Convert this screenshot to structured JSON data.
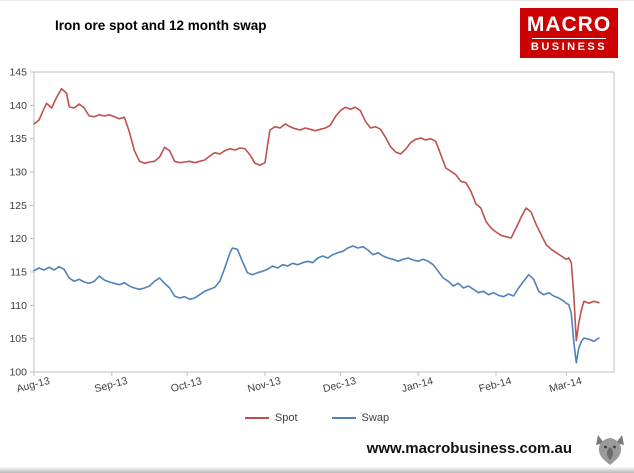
{
  "header": {
    "title": "Iron ore spot and 12 month swap",
    "logo": {
      "line1": "MACRO",
      "line2": "BUSINESS",
      "bg_color": "#cc0202",
      "text_color": "#ffffff"
    }
  },
  "footer": {
    "url": "www.macrobusiness.com.au",
    "logo_icon": "wolf-logo"
  },
  "chart_data": {
    "type": "line",
    "title": "Iron ore spot and 12 month swap",
    "xlabel": "",
    "ylabel": "",
    "ylim": [
      100,
      145
    ],
    "y_step": 5,
    "x_max_day": 231,
    "grid": false,
    "legend_position": "bottom",
    "axis_color": "#bfbfbf",
    "tick_label_color": "#404040",
    "x_ticks": [
      {
        "label": "Aug-13",
        "day": 0
      },
      {
        "label": "Sep-13",
        "day": 31
      },
      {
        "label": "Oct-13",
        "day": 61
      },
      {
        "label": "Nov-13",
        "day": 92
      },
      {
        "label": "Dec-13",
        "day": 122
      },
      {
        "label": "Jan-14",
        "day": 153
      },
      {
        "label": "Feb-14",
        "day": 184
      },
      {
        "label": "Mar-14",
        "day": 212
      }
    ],
    "series": [
      {
        "name": "Spot",
        "color": "#C0504D",
        "points": [
          [
            0,
            137.2
          ],
          [
            2,
            137.8
          ],
          [
            4,
            139.5
          ],
          [
            5,
            140.3
          ],
          [
            7,
            139.6
          ],
          [
            9,
            141.2
          ],
          [
            11,
            142.5
          ],
          [
            13,
            141.8
          ],
          [
            14,
            139.8
          ],
          [
            16,
            139.6
          ],
          [
            18,
            140.2
          ],
          [
            20,
            139.6
          ],
          [
            22,
            138.4
          ],
          [
            24,
            138.3
          ],
          [
            26,
            138.6
          ],
          [
            28,
            138.4
          ],
          [
            30,
            138.6
          ],
          [
            32,
            138.3
          ],
          [
            34,
            138.0
          ],
          [
            36,
            138.2
          ],
          [
            38,
            136.0
          ],
          [
            40,
            133.2
          ],
          [
            42,
            131.6
          ],
          [
            44,
            131.3
          ],
          [
            46,
            131.5
          ],
          [
            48,
            131.6
          ],
          [
            50,
            132.2
          ],
          [
            52,
            133.7
          ],
          [
            54,
            133.2
          ],
          [
            56,
            131.6
          ],
          [
            58,
            131.4
          ],
          [
            60,
            131.5
          ],
          [
            62,
            131.6
          ],
          [
            64,
            131.4
          ],
          [
            66,
            131.6
          ],
          [
            68,
            131.8
          ],
          [
            70,
            132.4
          ],
          [
            72,
            132.9
          ],
          [
            74,
            132.7
          ],
          [
            76,
            133.2
          ],
          [
            78,
            133.5
          ],
          [
            80,
            133.3
          ],
          [
            82,
            133.6
          ],
          [
            84,
            133.5
          ],
          [
            86,
            132.6
          ],
          [
            88,
            131.3
          ],
          [
            90,
            131.0
          ],
          [
            92,
            131.4
          ],
          [
            93,
            134.0
          ],
          [
            94,
            136.3
          ],
          [
            96,
            136.8
          ],
          [
            98,
            136.6
          ],
          [
            100,
            137.2
          ],
          [
            102,
            136.8
          ],
          [
            104,
            136.5
          ],
          [
            106,
            136.3
          ],
          [
            108,
            136.6
          ],
          [
            110,
            136.4
          ],
          [
            112,
            136.2
          ],
          [
            114,
            136.4
          ],
          [
            116,
            136.6
          ],
          [
            118,
            137.0
          ],
          [
            120,
            138.3
          ],
          [
            122,
            139.2
          ],
          [
            124,
            139.7
          ],
          [
            126,
            139.4
          ],
          [
            128,
            139.7
          ],
          [
            130,
            139.2
          ],
          [
            132,
            137.6
          ],
          [
            134,
            136.6
          ],
          [
            136,
            136.8
          ],
          [
            138,
            136.4
          ],
          [
            140,
            135.2
          ],
          [
            142,
            133.8
          ],
          [
            144,
            133.0
          ],
          [
            146,
            132.7
          ],
          [
            148,
            133.4
          ],
          [
            150,
            134.4
          ],
          [
            152,
            134.9
          ],
          [
            154,
            135.1
          ],
          [
            156,
            134.8
          ],
          [
            158,
            135.0
          ],
          [
            160,
            134.6
          ],
          [
            162,
            132.6
          ],
          [
            164,
            130.6
          ],
          [
            166,
            130.1
          ],
          [
            168,
            129.6
          ],
          [
            170,
            128.6
          ],
          [
            172,
            128.4
          ],
          [
            174,
            127.1
          ],
          [
            176,
            125.2
          ],
          [
            178,
            124.6
          ],
          [
            180,
            122.6
          ],
          [
            182,
            121.6
          ],
          [
            184,
            121.0
          ],
          [
            186,
            120.5
          ],
          [
            188,
            120.3
          ],
          [
            190,
            120.1
          ],
          [
            192,
            121.6
          ],
          [
            194,
            123.2
          ],
          [
            196,
            124.6
          ],
          [
            198,
            124.0
          ],
          [
            200,
            122.1
          ],
          [
            202,
            120.6
          ],
          [
            204,
            119.1
          ],
          [
            206,
            118.4
          ],
          [
            208,
            117.9
          ],
          [
            210,
            117.4
          ],
          [
            212,
            116.9
          ],
          [
            213,
            117.1
          ],
          [
            214,
            116.4
          ],
          [
            215,
            111.5
          ],
          [
            216,
            104.7
          ],
          [
            217,
            107.4
          ],
          [
            218,
            109.3
          ],
          [
            219,
            110.6
          ],
          [
            221,
            110.3
          ],
          [
            223,
            110.6
          ],
          [
            225,
            110.4
          ]
        ]
      },
      {
        "name": "Swap",
        "color": "#4F81BD",
        "points": [
          [
            0,
            115.2
          ],
          [
            2,
            115.6
          ],
          [
            4,
            115.3
          ],
          [
            6,
            115.7
          ],
          [
            8,
            115.3
          ],
          [
            10,
            115.8
          ],
          [
            12,
            115.4
          ],
          [
            14,
            114.1
          ],
          [
            16,
            113.6
          ],
          [
            18,
            113.9
          ],
          [
            20,
            113.5
          ],
          [
            22,
            113.3
          ],
          [
            24,
            113.6
          ],
          [
            26,
            114.4
          ],
          [
            28,
            113.8
          ],
          [
            30,
            113.5
          ],
          [
            32,
            113.3
          ],
          [
            34,
            113.1
          ],
          [
            36,
            113.4
          ],
          [
            38,
            112.9
          ],
          [
            40,
            112.6
          ],
          [
            42,
            112.4
          ],
          [
            44,
            112.6
          ],
          [
            46,
            112.9
          ],
          [
            48,
            113.6
          ],
          [
            50,
            114.1
          ],
          [
            52,
            113.3
          ],
          [
            54,
            112.6
          ],
          [
            56,
            111.4
          ],
          [
            58,
            111.1
          ],
          [
            60,
            111.3
          ],
          [
            62,
            110.9
          ],
          [
            64,
            111.1
          ],
          [
            66,
            111.6
          ],
          [
            68,
            112.1
          ],
          [
            70,
            112.4
          ],
          [
            72,
            112.7
          ],
          [
            74,
            113.6
          ],
          [
            76,
            115.6
          ],
          [
            78,
            117.8
          ],
          [
            79,
            118.6
          ],
          [
            81,
            118.4
          ],
          [
            83,
            116.6
          ],
          [
            85,
            114.9
          ],
          [
            87,
            114.6
          ],
          [
            89,
            114.9
          ],
          [
            91,
            115.1
          ],
          [
            93,
            115.4
          ],
          [
            95,
            115.9
          ],
          [
            97,
            115.6
          ],
          [
            99,
            116.1
          ],
          [
            101,
            115.9
          ],
          [
            103,
            116.3
          ],
          [
            105,
            116.1
          ],
          [
            107,
            116.4
          ],
          [
            109,
            116.6
          ],
          [
            111,
            116.4
          ],
          [
            113,
            117.1
          ],
          [
            115,
            117.4
          ],
          [
            117,
            117.1
          ],
          [
            119,
            117.6
          ],
          [
            121,
            117.9
          ],
          [
            123,
            118.1
          ],
          [
            125,
            118.6
          ],
          [
            127,
            118.9
          ],
          [
            129,
            118.6
          ],
          [
            131,
            118.8
          ],
          [
            133,
            118.3
          ],
          [
            135,
            117.6
          ],
          [
            137,
            117.9
          ],
          [
            139,
            117.4
          ],
          [
            141,
            117.1
          ],
          [
            143,
            116.9
          ],
          [
            145,
            116.6
          ],
          [
            147,
            116.9
          ],
          [
            149,
            117.1
          ],
          [
            151,
            116.8
          ],
          [
            153,
            116.6
          ],
          [
            155,
            116.9
          ],
          [
            157,
            116.6
          ],
          [
            159,
            116.1
          ],
          [
            161,
            115.1
          ],
          [
            163,
            114.1
          ],
          [
            165,
            113.6
          ],
          [
            167,
            112.9
          ],
          [
            169,
            113.3
          ],
          [
            171,
            112.6
          ],
          [
            173,
            112.9
          ],
          [
            175,
            112.4
          ],
          [
            177,
            111.9
          ],
          [
            179,
            112.1
          ],
          [
            181,
            111.6
          ],
          [
            183,
            111.9
          ],
          [
            185,
            111.5
          ],
          [
            187,
            111.3
          ],
          [
            189,
            111.7
          ],
          [
            191,
            111.4
          ],
          [
            193,
            112.6
          ],
          [
            195,
            113.6
          ],
          [
            197,
            114.6
          ],
          [
            199,
            113.9
          ],
          [
            201,
            112.1
          ],
          [
            203,
            111.6
          ],
          [
            205,
            111.9
          ],
          [
            207,
            111.4
          ],
          [
            209,
            111.1
          ],
          [
            211,
            110.6
          ],
          [
            212,
            110.3
          ],
          [
            213,
            110.1
          ],
          [
            214,
            108.8
          ],
          [
            215,
            104.5
          ],
          [
            216,
            101.4
          ],
          [
            217,
            103.6
          ],
          [
            218,
            104.6
          ],
          [
            219,
            105.1
          ],
          [
            221,
            104.9
          ],
          [
            223,
            104.6
          ],
          [
            225,
            105.1
          ]
        ]
      }
    ]
  }
}
